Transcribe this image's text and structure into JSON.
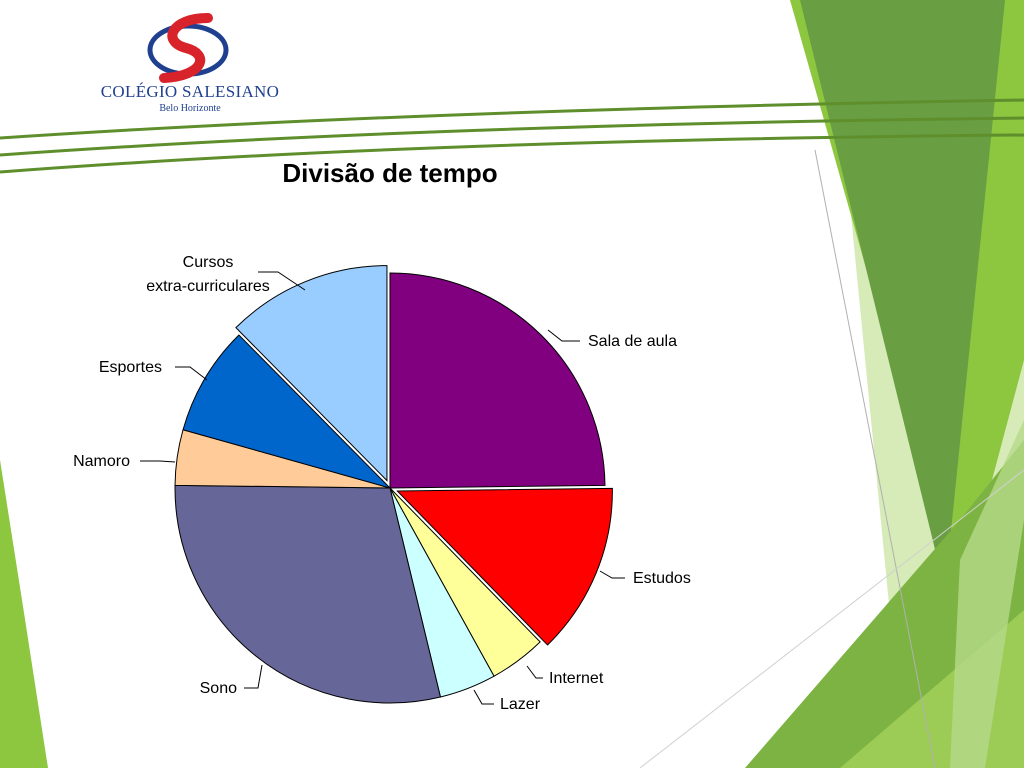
{
  "logo": {
    "name": "COLÉGIO SALESIANO",
    "city": "Belo Horizonte"
  },
  "colors": {
    "green_dark": "#6aa23c",
    "green_mid": "#8dc63f",
    "green_light": "#c5e29a",
    "rule": "#5e8f2c",
    "logo_red": "#d8232a",
    "logo_blue": "#1f3f8f"
  },
  "chart_data": {
    "type": "pie",
    "title": "Divisão de tempo",
    "legend": "none",
    "slices": [
      {
        "label": "Sala de aula",
        "value": 25,
        "color": "#800080",
        "exploded": false
      },
      {
        "label": "Estudos",
        "value": 13,
        "color": "#ff0000",
        "exploded": true
      },
      {
        "label": "Internet",
        "value": 4.3,
        "color": "#ffff99",
        "exploded": false
      },
      {
        "label": "Lazer",
        "value": 4.3,
        "color": "#ccffff",
        "exploded": false
      },
      {
        "label": "Sono",
        "value": 29.2,
        "color": "#666699",
        "exploded": false
      },
      {
        "label": "Namoro",
        "value": 4.2,
        "color": "#ffcc99",
        "exploded": false
      },
      {
        "label": "Esportes",
        "value": 8.3,
        "color": "#0066cc",
        "exploded": false
      },
      {
        "label": "Cursos extra-curriculares",
        "label_lines": [
          "Cursos",
          "extra-curriculares"
        ],
        "value": 12.5,
        "color": "#99ccff",
        "exploded": true
      }
    ]
  }
}
